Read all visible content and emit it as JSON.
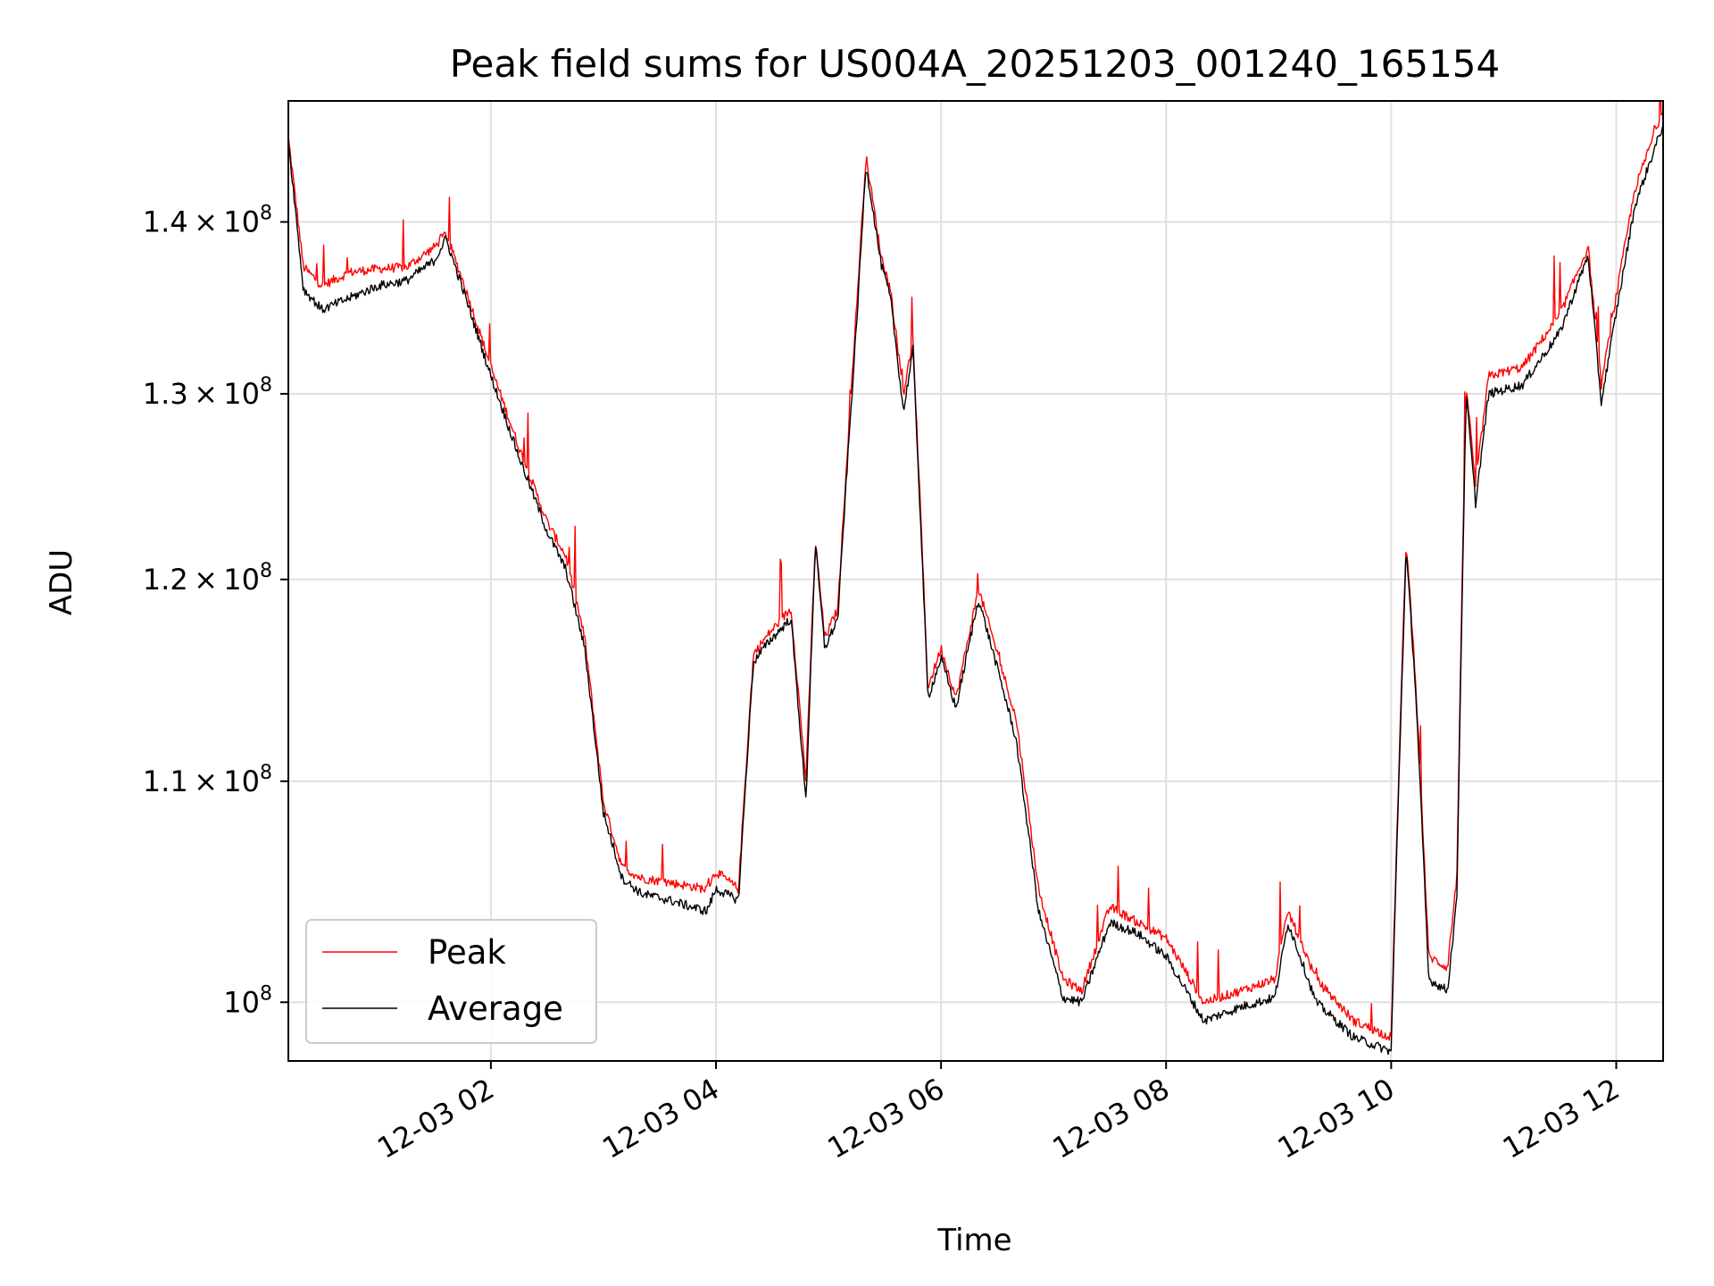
{
  "chart_data": {
    "type": "line",
    "title": "Peak field sums for US004A_20251203_001240_165154",
    "xlabel": "Time",
    "ylabel": "ADU",
    "yscale": "log",
    "grid": true,
    "legend_position": "lower left",
    "xlim": [
      "2025-12-03 00:12",
      "2025-12-03 12:25"
    ],
    "ylim": [
      97500000,
      147500000
    ],
    "x_ticks": [
      "12-03 02",
      "12-03 04",
      "12-03 06",
      "12-03 08",
      "12-03 10",
      "12-03 12"
    ],
    "y_ticks": [
      {
        "value": 100000000,
        "mantissa": "",
        "exponent": "8"
      },
      {
        "value": 110000000,
        "mantissa": "1.1",
        "exponent": "8"
      },
      {
        "value": 120000000,
        "mantissa": "1.2",
        "exponent": "8"
      },
      {
        "value": 130000000,
        "mantissa": "1.3",
        "exponent": "8"
      },
      {
        "value": 140000000,
        "mantissa": "1.4",
        "exponent": "8"
      }
    ],
    "series": [
      {
        "name": "Peak",
        "color": "#ff0000",
        "x": [
          "2025-12-03 00:12",
          "2025-12-03 00:20",
          "2025-12-03 00:30",
          "2025-12-03 00:45",
          "2025-12-03 01:00",
          "2025-12-03 01:15",
          "2025-12-03 01:30",
          "2025-12-03 01:36",
          "2025-12-03 01:45",
          "2025-12-03 02:00",
          "2025-12-03 02:15",
          "2025-12-03 02:30",
          "2025-12-03 02:40",
          "2025-12-03 02:50",
          "2025-12-03 03:00",
          "2025-12-03 03:10",
          "2025-12-03 03:20",
          "2025-12-03 03:35",
          "2025-12-03 03:55",
          "2025-12-03 04:00",
          "2025-12-03 04:12",
          "2025-12-03 04:20",
          "2025-12-03 04:28",
          "2025-12-03 04:40",
          "2025-12-03 04:48",
          "2025-12-03 04:53",
          "2025-12-03 04:58",
          "2025-12-03 05:05",
          "2025-12-03 05:15",
          "2025-12-03 05:20",
          "2025-12-03 05:28",
          "2025-12-03 05:33",
          "2025-12-03 05:40",
          "2025-12-03 05:45",
          "2025-12-03 05:53",
          "2025-12-03 06:00",
          "2025-12-03 06:08",
          "2025-12-03 06:20",
          "2025-12-03 06:40",
          "2025-12-03 06:52",
          "2025-12-03 07:05",
          "2025-12-03 07:15",
          "2025-12-03 07:30",
          "2025-12-03 07:45",
          "2025-12-03 08:00",
          "2025-12-03 08:20",
          "2025-12-03 08:40",
          "2025-12-03 08:58",
          "2025-12-03 09:05",
          "2025-12-03 09:20",
          "2025-12-03 09:40",
          "2025-12-03 10:00",
          "2025-12-03 10:08",
          "2025-12-03 10:13",
          "2025-12-03 10:20",
          "2025-12-03 10:30",
          "2025-12-03 10:35",
          "2025-12-03 10:40",
          "2025-12-03 10:45",
          "2025-12-03 10:52",
          "2025-12-03 11:10",
          "2025-12-03 11:30",
          "2025-12-03 11:45",
          "2025-12-03 11:52",
          "2025-12-03 12:10",
          "2025-12-03 12:25"
        ],
        "y": [
          145200000,
          137300000,
          136200000,
          137000000,
          137200000,
          137300000,
          138500000,
          139300000,
          136500000,
          131500000,
          127000000,
          123000000,
          121200000,
          117000000,
          109000000,
          106000000,
          105500000,
          105300000,
          105000000,
          105800000,
          105000000,
          116200000,
          117200000,
          118500000,
          110000000,
          122000000,
          117000000,
          118500000,
          135000000,
          144000000,
          138000000,
          136000000,
          130000000,
          133000000,
          114500000,
          116500000,
          114000000,
          119500000,
          113000000,
          105000000,
          101000000,
          100500000,
          104200000,
          103500000,
          102800000,
          100000000,
          100500000,
          101000000,
          104000000,
          101000000,
          99200000,
          98500000,
          122000000,
          115000000,
          102000000,
          101500000,
          105500000,
          130500000,
          125000000,
          131000000,
          131500000,
          134500000,
          138500000,
          130500000,
          142000000,
          147000000
        ]
      },
      {
        "name": "Average",
        "color": "#000000",
        "x": [
          "2025-12-03 00:12",
          "2025-12-03 00:20",
          "2025-12-03 00:30",
          "2025-12-03 00:45",
          "2025-12-03 01:00",
          "2025-12-03 01:15",
          "2025-12-03 01:30",
          "2025-12-03 01:36",
          "2025-12-03 01:45",
          "2025-12-03 02:00",
          "2025-12-03 02:15",
          "2025-12-03 02:30",
          "2025-12-03 02:40",
          "2025-12-03 02:50",
          "2025-12-03 03:00",
          "2025-12-03 03:10",
          "2025-12-03 03:20",
          "2025-12-03 03:35",
          "2025-12-03 03:55",
          "2025-12-03 04:00",
          "2025-12-03 04:12",
          "2025-12-03 04:20",
          "2025-12-03 04:28",
          "2025-12-03 04:40",
          "2025-12-03 04:48",
          "2025-12-03 04:53",
          "2025-12-03 04:58",
          "2025-12-03 05:05",
          "2025-12-03 05:15",
          "2025-12-03 05:20",
          "2025-12-03 05:28",
          "2025-12-03 05:33",
          "2025-12-03 05:40",
          "2025-12-03 05:45",
          "2025-12-03 05:53",
          "2025-12-03 06:00",
          "2025-12-03 06:08",
          "2025-12-03 06:20",
          "2025-12-03 06:40",
          "2025-12-03 06:52",
          "2025-12-03 07:05",
          "2025-12-03 07:15",
          "2025-12-03 07:30",
          "2025-12-03 07:45",
          "2025-12-03 08:00",
          "2025-12-03 08:20",
          "2025-12-03 08:40",
          "2025-12-03 08:58",
          "2025-12-03 09:05",
          "2025-12-03 09:20",
          "2025-12-03 09:40",
          "2025-12-03 10:00",
          "2025-12-03 10:08",
          "2025-12-03 10:13",
          "2025-12-03 10:20",
          "2025-12-03 10:30",
          "2025-12-03 10:35",
          "2025-12-03 10:40",
          "2025-12-03 10:45",
          "2025-12-03 10:52",
          "2025-12-03 11:10",
          "2025-12-03 11:30",
          "2025-12-03 11:45",
          "2025-12-03 11:52",
          "2025-12-03 12:10",
          "2025-12-03 12:25"
        ],
        "y": [
          145000000,
          136000000,
          134800000,
          135500000,
          136200000,
          136500000,
          137700000,
          139000000,
          136000000,
          131000000,
          126500000,
          122500000,
          120500000,
          116500000,
          108500000,
          105500000,
          104800000,
          104500000,
          104000000,
          105000000,
          104500000,
          115800000,
          116800000,
          118000000,
          109000000,
          121800000,
          116500000,
          118000000,
          134000000,
          143500000,
          137500000,
          135500000,
          129000000,
          132500000,
          114000000,
          116000000,
          113500000,
          119000000,
          112000000,
          104000000,
          100200000,
          100000000,
          103500000,
          103000000,
          102000000,
          99200000,
          99800000,
          100200000,
          103500000,
          100000000,
          98500000,
          97900000,
          121500000,
          114500000,
          101000000,
          100500000,
          104500000,
          130000000,
          124000000,
          130000000,
          130500000,
          133500000,
          138000000,
          129500000,
          141000000,
          146000000
        ]
      }
    ]
  }
}
